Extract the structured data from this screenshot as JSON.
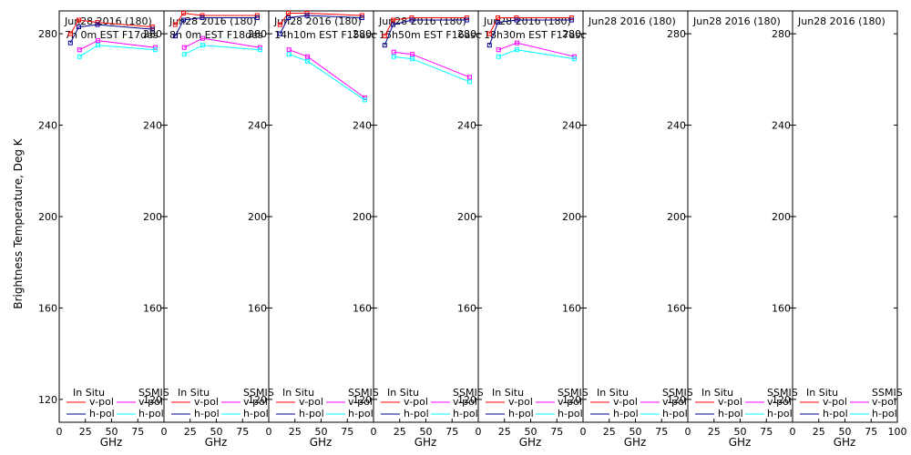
{
  "chart_data": {
    "type": "line",
    "ylabel": "Brightness Temperature, Deg K",
    "xlabel": "GHz",
    "xlim": [
      0,
      100
    ],
    "ylim": [
      110,
      290
    ],
    "xticks": [
      0,
      25,
      50,
      75,
      100
    ],
    "yticks": [
      120,
      160,
      200,
      240,
      280
    ],
    "legend": {
      "insitu_title": "In Situ",
      "ssmis_title": "SSMIS",
      "vpol": "v-pol",
      "hpol": "h-pol"
    },
    "colors": {
      "insitu_v": "#ff0000",
      "insitu_h": "#00008b",
      "ssmis_v": "#ff00ff",
      "ssmis_h": "#00ffff"
    },
    "panels": [
      {
        "date": "Jun28 2016 (180)",
        "subtitle": "7h 0m  EST F17des",
        "insitu_v": {
          "x": [
            10.7,
            18.7,
            36.5,
            89
          ],
          "y": [
            280,
            286,
            285,
            283
          ]
        },
        "insitu_h": {
          "x": [
            10.7,
            18.7,
            36.5,
            89
          ],
          "y": [
            276,
            283,
            284,
            282
          ]
        },
        "ssmis_v": {
          "x": [
            19.35,
            37,
            91.65
          ],
          "y": [
            273,
            277,
            274
          ]
        },
        "ssmis_h": {
          "x": [
            19.35,
            37,
            91.65
          ],
          "y": [
            270,
            275,
            273
          ]
        }
      },
      {
        "date": "Jun28 2016 (180)",
        "subtitle": "8h 0m  EST F18des",
        "insitu_v": {
          "x": [
            10.7,
            18.7,
            36.5,
            89
          ],
          "y": [
            284,
            289,
            288,
            288
          ]
        },
        "insitu_h": {
          "x": [
            10.7,
            18.7,
            36.5,
            89
          ],
          "y": [
            279,
            286,
            287,
            287
          ]
        },
        "ssmis_v": {
          "x": [
            19.35,
            37,
            91.65
          ],
          "y": [
            274,
            278,
            274
          ]
        },
        "ssmis_h": {
          "x": [
            19.35,
            37,
            91.65
          ],
          "y": [
            271,
            275,
            273
          ]
        }
      },
      {
        "date": "Jun28 2016 (180)",
        "subtitle": "14h10m  EST F15asc",
        "insitu_v": {
          "x": [
            10.7,
            18.7,
            36.5,
            89
          ],
          "y": [
            284,
            289,
            289,
            288
          ]
        },
        "insitu_h": {
          "x": [
            10.7,
            18.7,
            36.5,
            89
          ],
          "y": [
            280,
            287,
            288,
            287
          ]
        },
        "ssmis_v": {
          "x": [
            19.35,
            37,
            91.65
          ],
          "y": [
            273,
            270,
            252
          ]
        },
        "ssmis_h": {
          "x": [
            19.35,
            37,
            91.65
          ],
          "y": [
            271,
            268,
            251
          ]
        }
      },
      {
        "date": "Jun28 2016 (180)",
        "subtitle": "15h50m  EST F16asc",
        "insitu_v": {
          "x": [
            10.7,
            18.7,
            36.5,
            89
          ],
          "y": [
            279,
            286,
            287,
            287
          ]
        },
        "insitu_h": {
          "x": [
            10.7,
            18.7,
            36.5,
            89
          ],
          "y": [
            275,
            284,
            286,
            286
          ]
        },
        "ssmis_v": {
          "x": [
            19.35,
            37,
            91.65
          ],
          "y": [
            272,
            271,
            261
          ]
        },
        "ssmis_h": {
          "x": [
            19.35,
            37,
            91.65
          ],
          "y": [
            270,
            269,
            259
          ]
        }
      },
      {
        "date": "Jun28 2016 (180)",
        "subtitle": "18h30m  EST F17asc",
        "insitu_v": {
          "x": [
            10.7,
            18.7,
            36.5,
            89
          ],
          "y": [
            280,
            287,
            287,
            287
          ]
        },
        "insitu_h": {
          "x": [
            10.7,
            18.7,
            36.5,
            89
          ],
          "y": [
            275,
            285,
            286,
            286
          ]
        },
        "ssmis_v": {
          "x": [
            19.35,
            37,
            91.65
          ],
          "y": [
            273,
            276,
            270
          ]
        },
        "ssmis_h": {
          "x": [
            19.35,
            37,
            91.65
          ],
          "y": [
            270,
            273,
            269
          ]
        }
      },
      {
        "date": "Jun28 2016 (180)",
        "subtitle": ""
      },
      {
        "date": "Jun28 2016 (180)",
        "subtitle": ""
      },
      {
        "date": "Jun28 2016 (180)",
        "subtitle": ""
      }
    ]
  }
}
